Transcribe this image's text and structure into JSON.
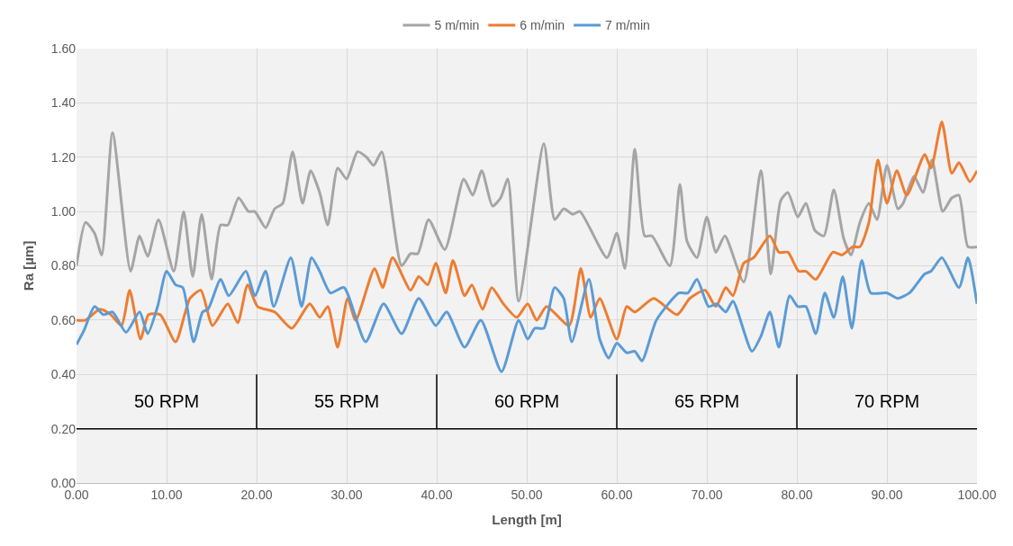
{
  "chart_data": {
    "type": "line",
    "xlabel": "Length [m]",
    "ylabel": "Ra [µm]",
    "xlim": [
      0,
      100
    ],
    "ylim": [
      0,
      1.6
    ],
    "xticks": [
      {
        "value": 0,
        "label": "0.00"
      },
      {
        "value": 10,
        "label": "10.00"
      },
      {
        "value": 20,
        "label": "20.00"
      },
      {
        "value": 30,
        "label": "30.00"
      },
      {
        "value": 40,
        "label": "40.00"
      },
      {
        "value": 50,
        "label": "50.00"
      },
      {
        "value": 60,
        "label": "60.00"
      },
      {
        "value": 70,
        "label": "70.00"
      },
      {
        "value": 80,
        "label": "80.00"
      },
      {
        "value": 90,
        "label": "90.00"
      },
      {
        "value": 100,
        "label": "100.00"
      }
    ],
    "yticks": [
      {
        "value": 0,
        "label": "0.00"
      },
      {
        "value": 0.2,
        "label": "0.20"
      },
      {
        "value": 0.4,
        "label": "0.40"
      },
      {
        "value": 0.6,
        "label": "0.60"
      },
      {
        "value": 0.8,
        "label": "0.80"
      },
      {
        "value": 1.0,
        "label": "1.00"
      },
      {
        "value": 1.2,
        "label": "1.20"
      },
      {
        "value": 1.4,
        "label": "1.40"
      },
      {
        "value": 1.6,
        "label": "1.60"
      }
    ],
    "grid": true,
    "legend": "top",
    "marker": "none",
    "line_style": "solid",
    "series": [
      {
        "name": "5 m/min",
        "color": "#a5a5a5",
        "x": [
          0,
          1,
          2,
          2.8,
          4,
          6,
          7,
          7.9,
          9.1,
          10.8,
          11.9,
          12.9,
          13.9,
          15,
          16,
          16.8,
          18,
          19.1,
          19.8,
          21,
          22,
          22.9,
          24,
          25.1,
          26,
          27,
          27.9,
          29,
          30,
          31.2,
          32.2,
          33,
          33.9,
          36.1,
          37.1,
          37.9,
          39.1,
          40.9,
          43,
          44,
          45,
          46.2,
          47.1,
          47.9,
          49.1,
          51.9,
          53.1,
          54.1,
          55.1,
          55.9,
          58.9,
          60,
          60.9,
          62,
          63.1,
          63.9,
          65.9,
          67,
          67.8,
          68.9,
          70,
          71,
          72,
          74.1,
          76,
          77.1,
          78.2,
          79,
          80.1,
          81,
          82,
          83,
          84.1,
          85.2,
          86,
          87,
          88,
          88.9,
          90,
          91.2,
          91.8,
          93,
          94,
          95,
          96.2,
          97.2,
          98,
          99,
          100
        ],
        "values": [
          0.8,
          0.96,
          0.92,
          0.84,
          1.29,
          0.78,
          0.91,
          0.835,
          0.97,
          0.78,
          1.0,
          0.76,
          0.99,
          0.75,
          0.95,
          0.95,
          1.05,
          1.0,
          1.0,
          0.94,
          1.01,
          1.03,
          1.22,
          1.03,
          1.15,
          1.07,
          0.95,
          1.16,
          1.12,
          1.22,
          1.2,
          1.17,
          1.22,
          0.8,
          0.845,
          0.845,
          0.97,
          0.86,
          1.12,
          1.06,
          1.15,
          1.02,
          1.05,
          1.12,
          0.67,
          1.25,
          0.97,
          1.01,
          0.99,
          1.0,
          0.83,
          0.92,
          0.79,
          1.23,
          0.91,
          0.91,
          0.8,
          1.1,
          0.89,
          0.83,
          0.98,
          0.85,
          0.91,
          0.74,
          1.15,
          0.77,
          1.04,
          1.07,
          0.98,
          1.03,
          0.93,
          0.91,
          1.08,
          0.9,
          0.84,
          0.96,
          1.03,
          0.97,
          1.17,
          1.01,
          1.03,
          1.13,
          1.07,
          1.19,
          1.0,
          1.05,
          1.06,
          0.87,
          0.87
        ]
      },
      {
        "name": "6 m/min",
        "color": "#ed7d31",
        "x": [
          0,
          1,
          2.6,
          3.8,
          5,
          5.9,
          7.1,
          8,
          9.3,
          11,
          12.6,
          13.8,
          15.1,
          16.8,
          17.9,
          19,
          20.1,
          22,
          23.9,
          25.9,
          27,
          27.9,
          29,
          30.1,
          31,
          33.1,
          34,
          35.1,
          37.1,
          38,
          39,
          39.9,
          41,
          41.8,
          43.1,
          43.9,
          45.1,
          46.1,
          47.4,
          48.9,
          50.1,
          51.1,
          52.2,
          54.7,
          56,
          57.1,
          58.1,
          60,
          61.1,
          62,
          64.1,
          66.7,
          68.1,
          69.8,
          71,
          72.1,
          72.9,
          74.1,
          75.2,
          77,
          78,
          79,
          80.2,
          81,
          82.1,
          84,
          85,
          86.2,
          87,
          88,
          89,
          90,
          91.1,
          92.2,
          94.2,
          94.9,
          96.1,
          97.2,
          98,
          99.2,
          100
        ],
        "values": [
          0.6,
          0.6,
          0.64,
          0.62,
          0.58,
          0.71,
          0.53,
          0.62,
          0.62,
          0.52,
          0.68,
          0.71,
          0.58,
          0.66,
          0.59,
          0.73,
          0.65,
          0.63,
          0.57,
          0.66,
          0.61,
          0.65,
          0.5,
          0.68,
          0.6,
          0.79,
          0.72,
          0.83,
          0.71,
          0.76,
          0.73,
          0.81,
          0.7,
          0.82,
          0.69,
          0.73,
          0.64,
          0.72,
          0.66,
          0.61,
          0.66,
          0.6,
          0.65,
          0.58,
          0.79,
          0.61,
          0.68,
          0.53,
          0.65,
          0.63,
          0.68,
          0.62,
          0.68,
          0.71,
          0.65,
          0.72,
          0.69,
          0.81,
          0.83,
          0.91,
          0.85,
          0.85,
          0.78,
          0.78,
          0.75,
          0.85,
          0.84,
          0.87,
          0.87,
          0.96,
          1.19,
          1.03,
          1.15,
          1.06,
          1.21,
          1.16,
          1.33,
          1.14,
          1.18,
          1.11,
          1.15
        ]
      },
      {
        "name": "7 m/min",
        "color": "#5b9bd5",
        "x": [
          0,
          0.8,
          2,
          3,
          4,
          5.5,
          7,
          7.9,
          9,
          10,
          11,
          11.8,
          13,
          14,
          14.6,
          16,
          16.9,
          18.8,
          19.8,
          21,
          21.9,
          23.8,
          25,
          26.1,
          27,
          28.2,
          29.7,
          32.1,
          34.1,
          36.1,
          38,
          39.9,
          41.1,
          43.1,
          44.9,
          47.2,
          49.1,
          50.1,
          50.9,
          51.9,
          53.1,
          54.1,
          55,
          56.9,
          58.1,
          59.1,
          60,
          61.1,
          62,
          62.8,
          64.4,
          66.9,
          67.9,
          68.9,
          70.2,
          71.1,
          72.1,
          72.9,
          75,
          76,
          77,
          78,
          79.2,
          80.1,
          81,
          82.1,
          83.1,
          84.1,
          85.1,
          86.1,
          87.2,
          88.2,
          90,
          91.2,
          92.5,
          94.2,
          94.9,
          96.1,
          98,
          99,
          100
        ],
        "values": [
          0.51,
          0.56,
          0.65,
          0.62,
          0.63,
          0.555,
          0.63,
          0.55,
          0.65,
          0.78,
          0.73,
          0.72,
          0.52,
          0.63,
          0.64,
          0.75,
          0.69,
          0.78,
          0.69,
          0.78,
          0.65,
          0.83,
          0.65,
          0.83,
          0.78,
          0.7,
          0.72,
          0.52,
          0.66,
          0.55,
          0.68,
          0.58,
          0.63,
          0.5,
          0.6,
          0.41,
          0.6,
          0.53,
          0.57,
          0.57,
          0.72,
          0.68,
          0.52,
          0.75,
          0.53,
          0.46,
          0.515,
          0.48,
          0.485,
          0.45,
          0.6,
          0.7,
          0.7,
          0.75,
          0.65,
          0.66,
          0.63,
          0.67,
          0.485,
          0.54,
          0.63,
          0.5,
          0.69,
          0.65,
          0.65,
          0.55,
          0.7,
          0.61,
          0.76,
          0.57,
          0.82,
          0.7,
          0.7,
          0.68,
          0.7,
          0.77,
          0.78,
          0.83,
          0.72,
          0.83,
          0.66
        ]
      }
    ],
    "ref_lines": [
      {
        "axis": "y",
        "value": 0.2,
        "label": null
      },
      {
        "axis": "x",
        "value": 20,
        "label": null
      },
      {
        "axis": "x",
        "value": 40,
        "label": null
      },
      {
        "axis": "x",
        "value": 60,
        "label": null
      },
      {
        "axis": "x",
        "value": 80,
        "label": null
      }
    ],
    "annotations": [
      "50 RPM",
      "55 RPM",
      "60 RPM",
      "65 RPM",
      "70 RPM"
    ]
  }
}
